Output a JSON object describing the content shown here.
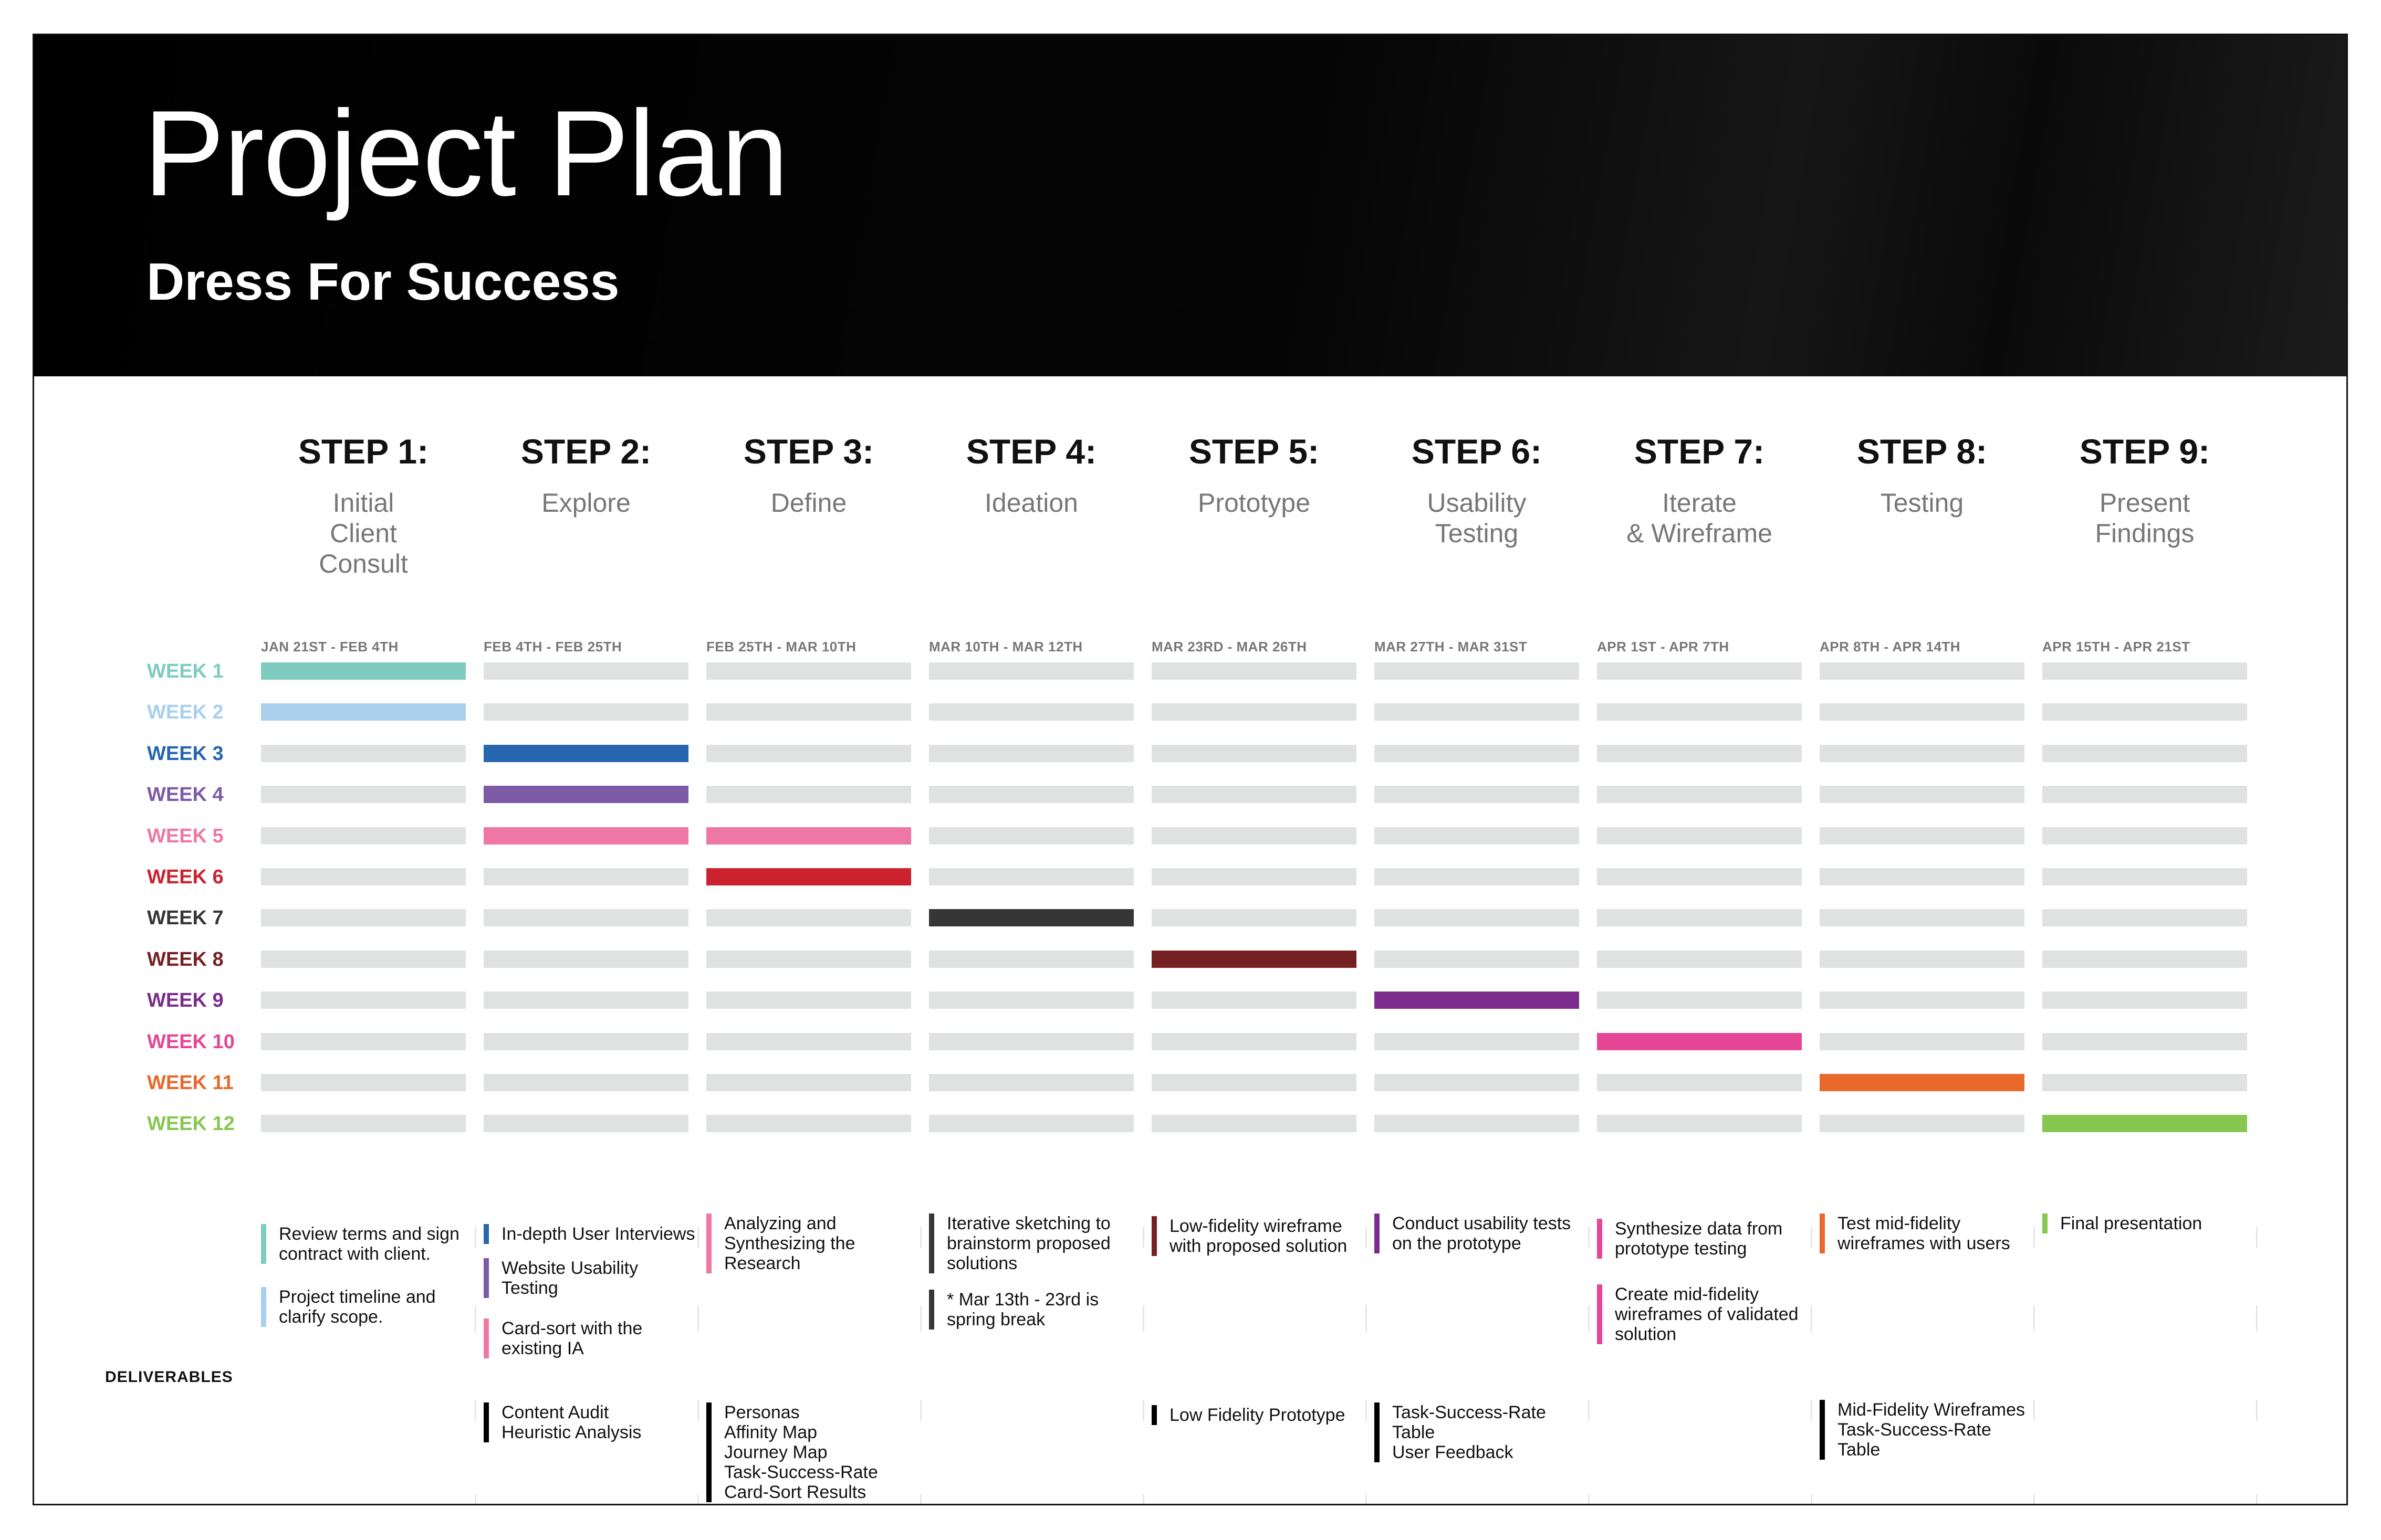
{
  "header": {
    "title": "Project Plan",
    "subtitle": "Dress For Success"
  },
  "steps": [
    {
      "label": "STEP 1:",
      "name": [
        "Initial",
        "Client",
        "Consult"
      ],
      "dates": "JAN 21ST - FEB 4TH"
    },
    {
      "label": "STEP 2:",
      "name": [
        "Explore"
      ],
      "dates": "FEB 4TH - FEB 25TH"
    },
    {
      "label": "STEP 3:",
      "name": [
        "Define"
      ],
      "dates": "FEB 25TH - MAR 10TH"
    },
    {
      "label": "STEP 4:",
      "name": [
        "Ideation"
      ],
      "dates": "MAR 10TH - MAR 12TH"
    },
    {
      "label": "STEP 5:",
      "name": [
        "Prototype"
      ],
      "dates": "MAR 23RD - MAR 26TH"
    },
    {
      "label": "STEP 6:",
      "name": [
        "Usability",
        "Testing"
      ],
      "dates": "MAR 27TH - MAR 31ST"
    },
    {
      "label": "STEP 7:",
      "name": [
        "Iterate",
        "& Wireframe"
      ],
      "dates": "APR 1ST - APR 7TH"
    },
    {
      "label": "STEP 8:",
      "name": [
        "Testing"
      ],
      "dates": "APR 8TH - APR 14TH"
    },
    {
      "label": "STEP 9:",
      "name": [
        "Present",
        "Findings"
      ],
      "dates": "APR 15TH - APR 21ST"
    }
  ],
  "weeks": [
    {
      "label": "WEEK 1",
      "color": "#7ecbc0",
      "active_steps": [
        1
      ]
    },
    {
      "label": "WEEK 2",
      "color": "#a8d0ee",
      "active_steps": [
        1
      ]
    },
    {
      "label": "WEEK 3",
      "color": "#2765ae",
      "active_steps": [
        2
      ]
    },
    {
      "label": "WEEK 4",
      "color": "#7d5aa6",
      "active_steps": [
        2
      ]
    },
    {
      "label": "WEEK 5",
      "color": "#ef77a3",
      "active_steps": [
        2,
        3
      ]
    },
    {
      "label": "WEEK 6",
      "color": "#cc2230",
      "active_steps": [
        3
      ]
    },
    {
      "label": "WEEK 7",
      "color": "#363636",
      "active_steps": [
        4
      ]
    },
    {
      "label": "WEEK 8",
      "color": "#752124",
      "active_steps": [
        5
      ]
    },
    {
      "label": "WEEK 9",
      "color": "#7b2c8c",
      "active_steps": [
        6
      ]
    },
    {
      "label": "WEEK 10",
      "color": "#e54696",
      "active_steps": [
        7
      ]
    },
    {
      "label": "WEEK 11",
      "color": "#e8692a",
      "active_steps": [
        8
      ]
    },
    {
      "label": "WEEK 12",
      "color": "#86c651",
      "active_steps": [
        9
      ]
    }
  ],
  "tasks": [
    {
      "step": 1,
      "week": 1,
      "lines": [
        "Review terms and sign",
        "contract with client."
      ]
    },
    {
      "step": 1,
      "week": 2,
      "lines": [
        "Project timeline and",
        "clarify scope."
      ]
    },
    {
      "step": 2,
      "week": 3,
      "lines": [
        "In-depth User Interviews"
      ]
    },
    {
      "step": 2,
      "week": 4,
      "lines": [
        "Website Usability",
        "Testing"
      ]
    },
    {
      "step": 2,
      "week": 5,
      "lines": [
        "Card-sort with the",
        "existing IA"
      ]
    },
    {
      "step": 3,
      "week": 5,
      "lines": [
        "Analyzing and",
        "Synthesizing the",
        "Research"
      ]
    },
    {
      "step": 4,
      "week": 7,
      "lines": [
        "Iterative sketching to",
        "brainstorm proposed",
        "solutions"
      ]
    },
    {
      "step": 4,
      "week": 7,
      "lines": [
        "* Mar 13th - 23rd is",
        "spring break"
      ]
    },
    {
      "step": 5,
      "week": 8,
      "lines": [
        "Low-fidelity wireframe",
        "with proposed solution"
      ]
    },
    {
      "step": 6,
      "week": 9,
      "lines": [
        "Conduct usability tests",
        "on the prototype"
      ]
    },
    {
      "step": 7,
      "week": 10,
      "lines": [
        "Synthesize data from",
        "prototype testing"
      ]
    },
    {
      "step": 7,
      "week": 10,
      "lines": [
        "Create mid-fidelity",
        "wireframes of validated",
        "solution"
      ]
    },
    {
      "step": 8,
      "week": 11,
      "lines": [
        "Test mid-fidelity",
        "wireframes with users"
      ]
    },
    {
      "step": 9,
      "week": 12,
      "lines": [
        "Final presentation"
      ]
    }
  ],
  "deliverables": {
    "label": "DELIVERABLES",
    "items": [
      {
        "step": 2,
        "lines": [
          "Content Audit",
          "Heuristic Analysis"
        ]
      },
      {
        "step": 3,
        "lines": [
          "Personas",
          "Affinity Map",
          "Journey Map",
          "Task-Success-Rate",
          "Card-Sort Results"
        ]
      },
      {
        "step": 5,
        "lines": [
          "Low Fidelity Prototype"
        ]
      },
      {
        "step": 6,
        "lines": [
          "Task-Success-Rate",
          "Table",
          "User Feedback"
        ]
      },
      {
        "step": 8,
        "lines": [
          "Mid-Fidelity Wireframes",
          "Task-Success-Rate",
          "Table"
        ]
      }
    ]
  }
}
